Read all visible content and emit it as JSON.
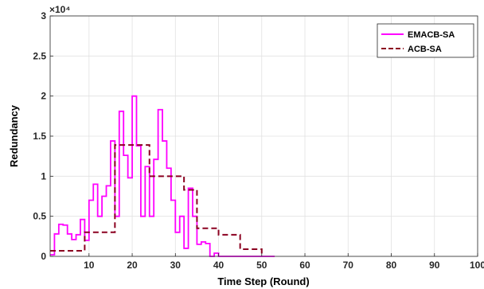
{
  "chart_data": {
    "type": "line",
    "xlabel": "Time Step (Round)",
    "ylabel": "Redundancy",
    "y_exponent_label": "×10⁴",
    "xlim": [
      1,
      100
    ],
    "ylim": [
      0,
      30000
    ],
    "grid": true,
    "legend_position": "top-right",
    "x_ticks": [
      10,
      20,
      30,
      40,
      50,
      60,
      70,
      80,
      90,
      100
    ],
    "x_tick_labels": [
      "10",
      "20",
      "30",
      "40",
      "50",
      "60",
      "70",
      "80",
      "90",
      "100"
    ],
    "y_ticks": [
      0,
      5000,
      10000,
      15000,
      20000,
      25000,
      30000
    ],
    "y_tick_labels": [
      "0",
      "0.5",
      "1",
      "1.5",
      "2",
      "2.5",
      "3"
    ],
    "series": [
      {
        "name": "EMACB-SA",
        "style": "solid-step",
        "color": "#ff00ff",
        "x": [
          1,
          2,
          3,
          4,
          5,
          6,
          7,
          8,
          9,
          10,
          11,
          12,
          13,
          14,
          15,
          16,
          17,
          18,
          19,
          20,
          21,
          22,
          23,
          24,
          25,
          26,
          27,
          28,
          29,
          30,
          31,
          32,
          33,
          34,
          35,
          36,
          37,
          38,
          39,
          40,
          41,
          42,
          43,
          44,
          45,
          46,
          47,
          48,
          49,
          50,
          51,
          52,
          53
        ],
        "values": [
          200,
          2800,
          4000,
          3900,
          2800,
          2100,
          2700,
          4600,
          2000,
          7000,
          9000,
          5000,
          7500,
          8800,
          14400,
          5000,
          18100,
          12600,
          9800,
          20000,
          13800,
          5000,
          11200,
          5000,
          12100,
          18300,
          14400,
          11000,
          7000,
          3000,
          5000,
          1000,
          8500,
          5000,
          1500,
          1800,
          1600,
          0,
          400,
          0,
          0,
          0,
          0,
          0,
          0,
          0,
          0,
          0,
          0,
          0,
          0,
          0,
          0
        ]
      },
      {
        "name": "ACB-SA",
        "style": "dashed-step",
        "color": "#8b0020",
        "x": [
          1,
          5,
          9,
          12,
          16,
          20,
          24,
          28,
          32,
          35,
          40,
          45,
          50
        ],
        "values": [
          700,
          700,
          3000,
          3000,
          13900,
          13900,
          10000,
          10000,
          8300,
          3500,
          2700,
          900,
          0
        ]
      }
    ]
  }
}
